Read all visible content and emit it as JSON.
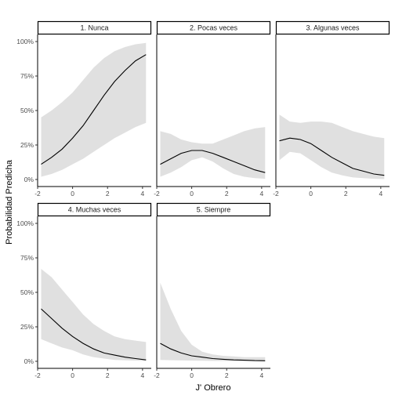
{
  "chart_data": {
    "type": "area",
    "xlabel": "J' Obrero",
    "ylabel": "Probabilidad Predicha",
    "x_ticks": [
      "-2",
      "0",
      "2",
      "4"
    ],
    "y_ticks": [
      "0%",
      "25%",
      "50%",
      "75%",
      "100%"
    ],
    "xlim": [
      -2,
      4.5
    ],
    "ylim": [
      0,
      1
    ],
    "grid": false,
    "colors": {
      "line": "#000000",
      "ribbon": "#e0e0e0",
      "strip_border": "#000000"
    },
    "x": [
      -1.8,
      -1.2,
      -0.6,
      0,
      0.6,
      1.2,
      1.8,
      2.4,
      3.0,
      3.6,
      4.2
    ],
    "panels": [
      {
        "strip": "1. Nunca",
        "fit": [
          0.11,
          0.16,
          0.22,
          0.3,
          0.39,
          0.5,
          0.61,
          0.71,
          0.79,
          0.86,
          0.905
        ],
        "lower": [
          0.02,
          0.04,
          0.07,
          0.11,
          0.15,
          0.2,
          0.25,
          0.3,
          0.34,
          0.38,
          0.41
        ],
        "upper": [
          0.45,
          0.5,
          0.56,
          0.63,
          0.72,
          0.81,
          0.88,
          0.93,
          0.96,
          0.98,
          0.99
        ]
      },
      {
        "strip": "2. Pocas veces",
        "fit": [
          0.11,
          0.15,
          0.19,
          0.21,
          0.21,
          0.19,
          0.16,
          0.13,
          0.1,
          0.07,
          0.05
        ],
        "lower": [
          0.02,
          0.05,
          0.09,
          0.14,
          0.16,
          0.13,
          0.08,
          0.04,
          0.02,
          0.01,
          0.005
        ],
        "upper": [
          0.35,
          0.33,
          0.29,
          0.27,
          0.26,
          0.26,
          0.29,
          0.32,
          0.35,
          0.37,
          0.38
        ]
      },
      {
        "strip": "3. Algunas veces",
        "fit": [
          0.28,
          0.3,
          0.29,
          0.26,
          0.21,
          0.16,
          0.12,
          0.08,
          0.06,
          0.04,
          0.03
        ],
        "lower": [
          0.14,
          0.2,
          0.19,
          0.14,
          0.09,
          0.05,
          0.03,
          0.015,
          0.01,
          0.005,
          0.003
        ],
        "upper": [
          0.47,
          0.42,
          0.41,
          0.42,
          0.42,
          0.41,
          0.38,
          0.35,
          0.33,
          0.31,
          0.3
        ]
      },
      {
        "strip": "4. Muchas veces",
        "fit": [
          0.38,
          0.31,
          0.24,
          0.18,
          0.13,
          0.09,
          0.06,
          0.045,
          0.03,
          0.02,
          0.01
        ],
        "lower": [
          0.16,
          0.13,
          0.1,
          0.08,
          0.05,
          0.03,
          0.02,
          0.01,
          0.007,
          0.005,
          0.003
        ],
        "upper": [
          0.67,
          0.61,
          0.52,
          0.43,
          0.34,
          0.27,
          0.22,
          0.18,
          0.16,
          0.15,
          0.14
        ]
      },
      {
        "strip": "5. Siempre",
        "fit": [
          0.13,
          0.09,
          0.06,
          0.04,
          0.03,
          0.02,
          0.015,
          0.01,
          0.008,
          0.005,
          0.004
        ],
        "lower": [
          0.01,
          0.008,
          0.006,
          0.005,
          0.004,
          0.003,
          0.002,
          0.002,
          0.001,
          0.001,
          0.001
        ],
        "upper": [
          0.57,
          0.38,
          0.22,
          0.12,
          0.07,
          0.05,
          0.04,
          0.035,
          0.03,
          0.03,
          0.03
        ]
      }
    ]
  }
}
